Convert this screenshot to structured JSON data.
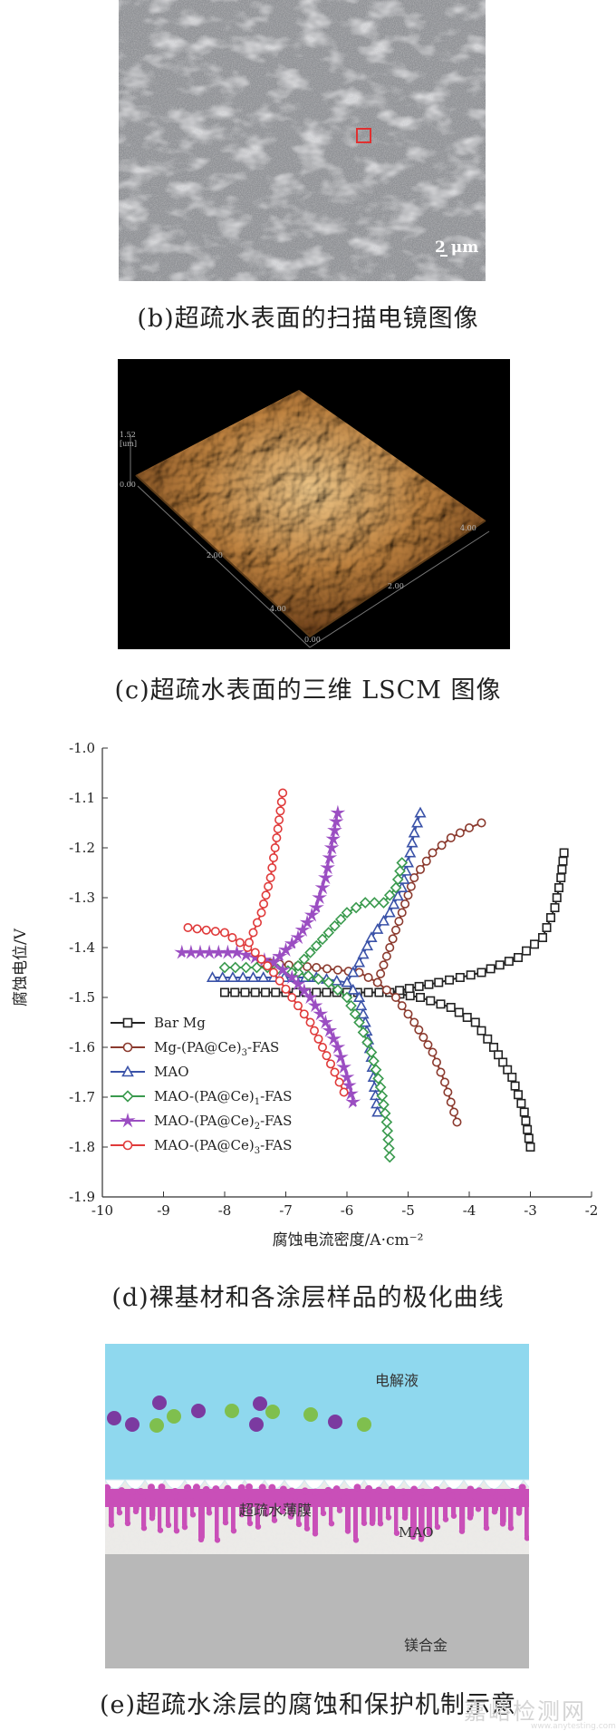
{
  "panel_b": {
    "caption": "(b)超疏水表面的扫描电镜图像",
    "scalebar_label": "2 μm"
  },
  "panel_c": {
    "caption": "(c)超疏水表面的三维 LSCM 图像",
    "z_max_label": "1.52",
    "z_unit_label": "[um]",
    "z_min_label": "0.00",
    "axis_ticks_front": [
      "2.00",
      "4.00",
      "0.00"
    ],
    "axis_ticks_right": [
      "4.00",
      "2.00"
    ]
  },
  "panel_d": {
    "caption": "(d)裸基材和各涂层样品的极化曲线"
  },
  "panel_e": {
    "caption": "(e)超疏水涂层的腐蚀和保护机制示意",
    "labels": {
      "electrolyte": "电解液",
      "film": "超疏水薄膜",
      "mao": "MAO",
      "alloy": "镁合金"
    },
    "colors": {
      "electrolyte": "#8fd8ee",
      "film": "#c94fb8",
      "mao": "#ecebe8",
      "alloy": "#b8b8b8",
      "ion_purple": "#7b3aa0",
      "ion_green": "#7fbf4e"
    }
  },
  "watermark": {
    "text": "嘉峪检测网",
    "url": "www.anytesting.com"
  },
  "chart_data": {
    "type": "line",
    "xlabel": "腐蚀电流密度/A·cm⁻²",
    "ylabel": "腐蚀电位/V",
    "xlim": [
      -10,
      -2
    ],
    "ylim": [
      -1.9,
      -1.0
    ],
    "y_inverted": true,
    "x_ticks": [
      "-10",
      "-9",
      "-8",
      "-7",
      "-6",
      "-5",
      "-4",
      "-3",
      "-2"
    ],
    "y_ticks": [
      "-1.0",
      "-1.1",
      "-1.2",
      "-1.3",
      "-1.4",
      "-1.5",
      "-1.6",
      "-1.7",
      "-1.8",
      "-1.9"
    ],
    "legend_position": "bottom-left",
    "series": [
      {
        "name": "Bar Mg",
        "color": "#222222",
        "marker": "square",
        "cathodic": [
          [
            -8.0,
            -1.49
          ],
          [
            -7.0,
            -1.49
          ],
          [
            -6.0,
            -1.49
          ],
          [
            -5.3,
            -1.49
          ],
          [
            -4.8,
            -1.5
          ],
          [
            -4.3,
            -1.52
          ],
          [
            -3.9,
            -1.55
          ],
          [
            -3.6,
            -1.6
          ],
          [
            -3.3,
            -1.66
          ],
          [
            -3.1,
            -1.73
          ],
          [
            -3.0,
            -1.8
          ]
        ],
        "anodic": [
          [
            -5.3,
            -1.49
          ],
          [
            -4.5,
            -1.47
          ],
          [
            -3.8,
            -1.45
          ],
          [
            -3.2,
            -1.42
          ],
          [
            -2.8,
            -1.38
          ],
          [
            -2.6,
            -1.32
          ],
          [
            -2.5,
            -1.26
          ],
          [
            -2.45,
            -1.21
          ]
        ]
      },
      {
        "name": "Mg-(PA@Ce)3-FAS",
        "color": "#8b3a2e",
        "marker": "circle",
        "cathodic": [
          [
            -7.4,
            -1.43
          ],
          [
            -6.5,
            -1.44
          ],
          [
            -5.8,
            -1.45
          ],
          [
            -5.5,
            -1.47
          ],
          [
            -5.2,
            -1.5
          ],
          [
            -4.9,
            -1.55
          ],
          [
            -4.6,
            -1.61
          ],
          [
            -4.4,
            -1.67
          ],
          [
            -4.2,
            -1.75
          ]
        ],
        "anodic": [
          [
            -5.5,
            -1.47
          ],
          [
            -5.3,
            -1.4
          ],
          [
            -5.1,
            -1.33
          ],
          [
            -4.9,
            -1.26
          ],
          [
            -4.6,
            -1.21
          ],
          [
            -4.3,
            -1.18
          ],
          [
            -4.0,
            -1.16
          ],
          [
            -3.8,
            -1.15
          ]
        ]
      },
      {
        "name": "MAO",
        "color": "#3a52a8",
        "marker": "triangle",
        "cathodic": [
          [
            -8.2,
            -1.46
          ],
          [
            -7.2,
            -1.46
          ],
          [
            -6.5,
            -1.46
          ],
          [
            -6.0,
            -1.47
          ],
          [
            -5.8,
            -1.5
          ],
          [
            -5.7,
            -1.55
          ],
          [
            -5.6,
            -1.62
          ],
          [
            -5.55,
            -1.68
          ],
          [
            -5.5,
            -1.73
          ]
        ],
        "anodic": [
          [
            -6.0,
            -1.47
          ],
          [
            -5.8,
            -1.43
          ],
          [
            -5.6,
            -1.38
          ],
          [
            -5.3,
            -1.33
          ],
          [
            -5.1,
            -1.28
          ],
          [
            -5.0,
            -1.23
          ],
          [
            -4.9,
            -1.17
          ],
          [
            -4.8,
            -1.13
          ]
        ]
      },
      {
        "name": "MAO-(PA@Ce)1-FAS",
        "color": "#3a9a4e",
        "marker": "diamond",
        "cathodic": [
          [
            -8.0,
            -1.44
          ],
          [
            -7.3,
            -1.44
          ],
          [
            -6.8,
            -1.45
          ],
          [
            -6.3,
            -1.47
          ],
          [
            -6.0,
            -1.5
          ],
          [
            -5.8,
            -1.55
          ],
          [
            -5.6,
            -1.61
          ],
          [
            -5.45,
            -1.68
          ],
          [
            -5.35,
            -1.75
          ],
          [
            -5.3,
            -1.82
          ]
        ],
        "anodic": [
          [
            -6.9,
            -1.45
          ],
          [
            -6.6,
            -1.41
          ],
          [
            -6.3,
            -1.37
          ],
          [
            -6.0,
            -1.33
          ],
          [
            -5.7,
            -1.31
          ],
          [
            -5.4,
            -1.31
          ],
          [
            -5.2,
            -1.28
          ],
          [
            -5.1,
            -1.23
          ]
        ]
      },
      {
        "name": "MAO-(PA@Ce)2-FAS",
        "color": "#9b4ec2",
        "marker": "star",
        "cathodic": [
          [
            -8.7,
            -1.41
          ],
          [
            -7.8,
            -1.41
          ],
          [
            -7.2,
            -1.43
          ],
          [
            -6.9,
            -1.46
          ],
          [
            -6.6,
            -1.5
          ],
          [
            -6.35,
            -1.55
          ],
          [
            -6.15,
            -1.6
          ],
          [
            -6.0,
            -1.66
          ],
          [
            -5.9,
            -1.71
          ]
        ],
        "anodic": [
          [
            -7.2,
            -1.43
          ],
          [
            -6.8,
            -1.38
          ],
          [
            -6.5,
            -1.32
          ],
          [
            -6.35,
            -1.26
          ],
          [
            -6.25,
            -1.2
          ],
          [
            -6.15,
            -1.13
          ]
        ]
      },
      {
        "name": "MAO-(PA@Ce)3-FAS",
        "color": "#e03a3a",
        "marker": "circle",
        "cathodic": [
          [
            -8.6,
            -1.36
          ],
          [
            -8.0,
            -1.37
          ],
          [
            -7.5,
            -1.41
          ],
          [
            -7.2,
            -1.45
          ],
          [
            -6.9,
            -1.5
          ],
          [
            -6.6,
            -1.55
          ],
          [
            -6.4,
            -1.6
          ],
          [
            -6.2,
            -1.65
          ],
          [
            -6.05,
            -1.69
          ]
        ],
        "anodic": [
          [
            -7.6,
            -1.39
          ],
          [
            -7.4,
            -1.33
          ],
          [
            -7.25,
            -1.26
          ],
          [
            -7.15,
            -1.18
          ],
          [
            -7.05,
            -1.09
          ]
        ]
      }
    ]
  }
}
